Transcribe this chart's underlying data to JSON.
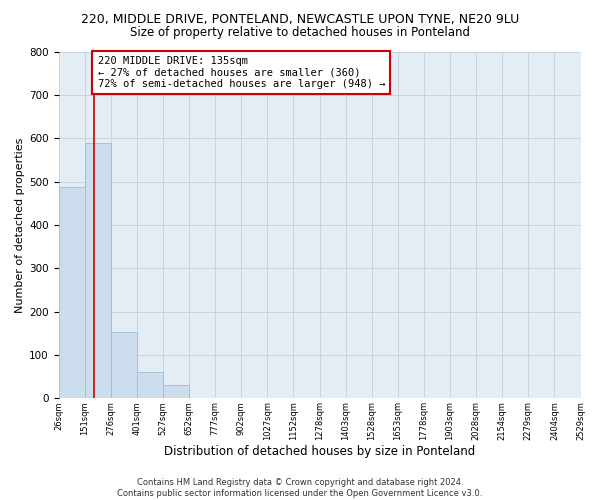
{
  "title": "220, MIDDLE DRIVE, PONTELAND, NEWCASTLE UPON TYNE, NE20 9LU",
  "subtitle": "Size of property relative to detached houses in Ponteland",
  "xlabel": "Distribution of detached houses by size in Ponteland",
  "ylabel": "Number of detached properties",
  "bar_heights": [
    487,
    590,
    152,
    61,
    30,
    0,
    0,
    0,
    0,
    0,
    0,
    0,
    0,
    0,
    0,
    0,
    0,
    0,
    0,
    0
  ],
  "bar_color": "#ccdded",
  "bar_edge_color": "#a0bdd4",
  "tick_labels": [
    "26sqm",
    "151sqm",
    "276sqm",
    "401sqm",
    "527sqm",
    "652sqm",
    "777sqm",
    "902sqm",
    "1027sqm",
    "1152sqm",
    "1278sqm",
    "1403sqm",
    "1528sqm",
    "1653sqm",
    "1778sqm",
    "1903sqm",
    "2028sqm",
    "2154sqm",
    "2279sqm",
    "2404sqm",
    "2529sqm"
  ],
  "ylim": [
    0,
    800
  ],
  "yticks": [
    0,
    100,
    200,
    300,
    400,
    500,
    600,
    700,
    800
  ],
  "property_line_x": 1.36,
  "property_line_color": "#cc0000",
  "annotation_text": "220 MIDDLE DRIVE: 135sqm\n← 27% of detached houses are smaller (360)\n72% of semi-detached houses are larger (948) →",
  "annotation_box_color": "#ffffff",
  "annotation_box_edge_color": "#cc0000",
  "footer_text": "Contains HM Land Registry data © Crown copyright and database right 2024.\nContains public sector information licensed under the Open Government Licence v3.0.",
  "background_color": "#ffffff",
  "axes_bg_color": "#e4ecf4",
  "grid_color": "#c8d4e0",
  "title_fontsize": 9,
  "subtitle_fontsize": 8.5,
  "xlabel_fontsize": 8.5,
  "ylabel_fontsize": 8,
  "footer_fontsize": 6,
  "annot_fontsize": 7.5
}
